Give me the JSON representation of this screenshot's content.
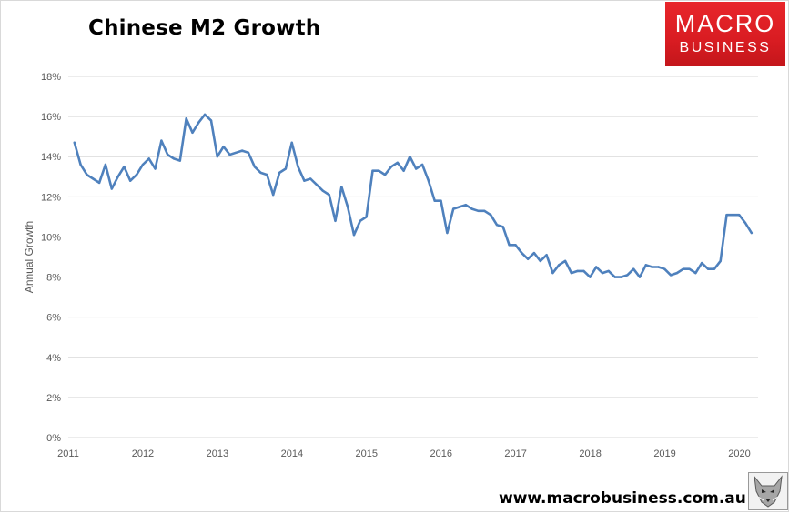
{
  "header": {
    "title": "Chinese M2 Growth",
    "logo_line1": "MACRO",
    "logo_line2": "BUSINESS"
  },
  "footer": {
    "url": "www.macrobusiness.com.au"
  },
  "colors": {
    "series": "#4f81bd",
    "grid": "#d9d9d9",
    "logo_bg": "#e1232a"
  },
  "icons": {
    "footer_logo": "fox-icon"
  },
  "chart_data": {
    "type": "line",
    "title": "Chinese M2 Growth",
    "xlabel": "",
    "ylabel": "Annual Growth",
    "ylim": [
      0,
      18
    ],
    "xlim": [
      2011.0,
      2020.25
    ],
    "yticks": [
      "0%",
      "2%",
      "4%",
      "6%",
      "8%",
      "10%",
      "12%",
      "14%",
      "16%",
      "18%"
    ],
    "xticks": [
      "2011",
      "2012",
      "2013",
      "2014",
      "2015",
      "2016",
      "2017",
      "2018",
      "2019",
      "2020"
    ],
    "grid": true,
    "legend": "none",
    "series": [
      {
        "name": "M2 Growth",
        "x_start": 2011.083,
        "x_step": 0.0833,
        "values": [
          14.7,
          13.6,
          13.1,
          12.9,
          12.7,
          13.6,
          12.4,
          13.0,
          13.5,
          12.8,
          13.1,
          13.6,
          13.9,
          13.4,
          14.8,
          14.1,
          13.9,
          13.8,
          15.9,
          15.2,
          15.7,
          16.1,
          15.8,
          14.0,
          14.5,
          14.1,
          14.2,
          14.3,
          14.2,
          13.5,
          13.2,
          13.1,
          12.1,
          13.2,
          13.4,
          14.7,
          13.5,
          12.8,
          12.9,
          12.6,
          12.3,
          12.1,
          10.8,
          12.5,
          11.5,
          10.1,
          10.8,
          11.0,
          13.3,
          13.3,
          13.1,
          13.5,
          13.7,
          13.3,
          14.0,
          13.4,
          13.6,
          12.8,
          11.8,
          11.8,
          10.2,
          11.4,
          11.5,
          11.6,
          11.4,
          11.3,
          11.3,
          11.1,
          10.6,
          10.5,
          9.6,
          9.6,
          9.2,
          8.9,
          9.2,
          8.8,
          9.1,
          8.2,
          8.6,
          8.8,
          8.2,
          8.3,
          8.3,
          8.0,
          8.5,
          8.2,
          8.3,
          8.0,
          8.0,
          8.1,
          8.4,
          8.0,
          8.6,
          8.5,
          8.5,
          8.4,
          8.1,
          8.2,
          8.4,
          8.4,
          8.2,
          8.7,
          8.4,
          8.4,
          8.8,
          11.1,
          11.1,
          11.1,
          10.7,
          10.2
        ]
      }
    ]
  }
}
